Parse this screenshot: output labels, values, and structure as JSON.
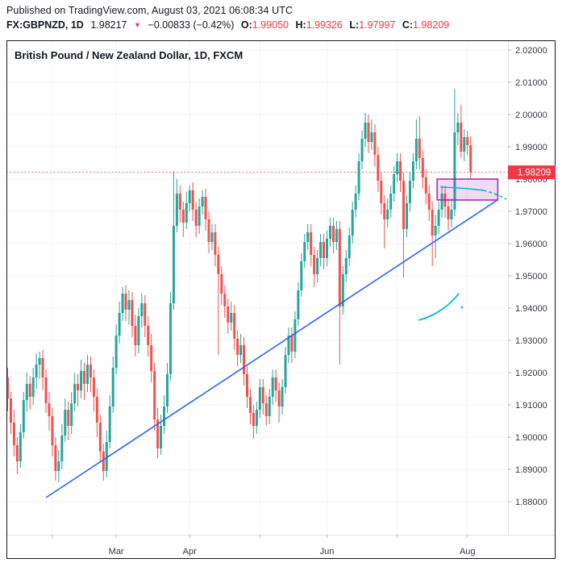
{
  "header": {
    "published": "Published on TradingView.com, August 03, 2021 06:08:34 UTC",
    "symbol": "FX:GBPNZD, 1D",
    "last_price": "1.98217",
    "direction_icon": "▼",
    "change": "−0.00833 (−0.42%)",
    "ohlc": {
      "o_label": "O:",
      "o_value": "1.99050",
      "h_label": "H:",
      "h_value": "1.99326",
      "l_label": "L:",
      "l_value": "1.97997",
      "c_label": "C:",
      "c_value": "1.98209"
    }
  },
  "chart": {
    "title": "British Pound / New Zealand Dollar, 1D, FXCM"
  },
  "colors": {
    "up": "#26a69a",
    "down": "#ef5350",
    "grid": "#f0f3fa",
    "frame": "#131722",
    "separator": "#e0e3eb",
    "axis_text": "#363a45",
    "accent_red": "#F23645",
    "trendline_blue": "#2962ff",
    "curve_cyan": "#00bcd4",
    "zone_purple": "#9c27b0",
    "label_text": "#ffffff"
  },
  "chart_data": {
    "type": "candlestick",
    "title": "British Pound / New Zealand Dollar, 1D, FXCM",
    "symbol": "GBPNZD",
    "timeframe": "1D",
    "exchange": "FXCM",
    "legend_position": "top-left",
    "grid": true,
    "y_axis": {
      "side": "right",
      "ticks": [
        "2.02000",
        "2.01000",
        "2.00000",
        "1.99000",
        "1.98000",
        "1.97000",
        "1.96000",
        "1.95000",
        "1.94000",
        "1.93000",
        "1.92000",
        "1.91000",
        "1.90000",
        "1.89000",
        "1.88000"
      ],
      "min": 1.8675,
      "max": 2.0235
    },
    "x_axis": {
      "labels": [
        {
          "text": "Mar",
          "day_index": 34
        },
        {
          "text": "Apr",
          "day_index": 57
        },
        {
          "text": "Jun",
          "day_index": 100
        },
        {
          "text": "Aug",
          "day_index": 144
        }
      ],
      "gridline_day_indices": [
        14,
        34,
        57,
        79,
        100,
        122,
        144
      ]
    },
    "price_line": {
      "value": 1.98209,
      "label": "1.98209"
    },
    "covered_axis_tick": "1.98000",
    "trendline": {
      "from": {
        "day": 12,
        "price": 1.88125
      },
      "to": {
        "day": 153.4,
        "price": 1.9735
      }
    },
    "rectangle_zone": {
      "day_start": 134.5,
      "day_end": 153.5,
      "price_top": 1.98,
      "price_bottom": 1.9735
    },
    "curves": [
      {
        "id": "upper-flat-curve",
        "solid": {
          "from": {
            "day": 135.5,
            "price": 1.9775
          },
          "to": {
            "day": 149.0,
            "price": 1.9765
          }
        },
        "dashed": {
          "to": {
            "day": 156.2,
            "price": 1.97375
          }
        }
      },
      {
        "id": "lower-arc-curve",
        "solid": {
          "from": {
            "day": 128.7,
            "price": 1.93625
          },
          "to": {
            "day": 141.3,
            "price": 1.9445
          }
        },
        "dot": {
          "day": 142.3,
          "price": 1.94025
        }
      }
    ],
    "candles": [
      [
        1.9185,
        1.9215,
        1.908,
        1.912
      ],
      [
        1.912,
        1.914,
        1.901,
        1.9045
      ],
      [
        1.9045,
        1.9085,
        1.894,
        1.8975
      ],
      [
        1.8975,
        1.9,
        1.8885,
        1.8925
      ],
      [
        1.8925,
        1.904,
        1.8905,
        1.9015
      ],
      [
        1.9015,
        1.914,
        1.8995,
        1.9115
      ],
      [
        1.9115,
        1.92,
        1.908,
        1.9165
      ],
      [
        1.9165,
        1.919,
        1.9085,
        1.9125
      ],
      [
        1.9125,
        1.9215,
        1.91,
        1.9185
      ],
      [
        1.9185,
        1.926,
        1.915,
        1.9225
      ],
      [
        1.9225,
        1.9265,
        1.918,
        1.9245
      ],
      [
        1.9245,
        1.927,
        1.9145,
        1.9185
      ],
      [
        1.9185,
        1.921,
        1.9075,
        1.9105
      ],
      [
        1.9105,
        1.914,
        1.902,
        1.9065
      ],
      [
        1.9065,
        1.909,
        1.894,
        1.8975
      ],
      [
        1.8975,
        1.9,
        1.8865,
        1.8895
      ],
      [
        1.8895,
        1.896,
        1.886,
        1.8925
      ],
      [
        1.8925,
        1.904,
        1.89,
        1.9005
      ],
      [
        1.9005,
        1.912,
        1.8985,
        1.9085
      ],
      [
        1.9085,
        1.911,
        1.899,
        1.9035
      ],
      [
        1.9035,
        1.914,
        1.901,
        1.9105
      ],
      [
        1.9105,
        1.92,
        1.908,
        1.9165
      ],
      [
        1.9165,
        1.9195,
        1.9095,
        1.9145
      ],
      [
        1.9145,
        1.924,
        1.912,
        1.9205
      ],
      [
        1.9205,
        1.923,
        1.9115,
        1.9165
      ],
      [
        1.9165,
        1.9255,
        1.914,
        1.9225
      ],
      [
        1.9225,
        1.925,
        1.914,
        1.9185
      ],
      [
        1.9185,
        1.921,
        1.908,
        1.9125
      ],
      [
        1.9125,
        1.915,
        1.9,
        1.9045
      ],
      [
        1.9045,
        1.907,
        1.892,
        1.8955
      ],
      [
        1.8955,
        1.898,
        1.8865,
        1.8895
      ],
      [
        1.8895,
        1.902,
        1.8875,
        1.8985
      ],
      [
        1.8985,
        1.913,
        1.8965,
        1.9095
      ],
      [
        1.9095,
        1.925,
        1.9075,
        1.9215
      ],
      [
        1.9215,
        1.935,
        1.9195,
        1.9315
      ],
      [
        1.9315,
        1.942,
        1.929,
        1.9385
      ],
      [
        1.9385,
        1.9465,
        1.936,
        1.9445
      ],
      [
        1.9445,
        1.947,
        1.936,
        1.9395
      ],
      [
        1.9395,
        1.9455,
        1.935,
        1.9425
      ],
      [
        1.9425,
        1.945,
        1.931,
        1.9345
      ],
      [
        1.9345,
        1.938,
        1.925,
        1.9285
      ],
      [
        1.9285,
        1.94,
        1.926,
        1.9375
      ],
      [
        1.9375,
        1.9445,
        1.934,
        1.9415
      ],
      [
        1.9415,
        1.944,
        1.931,
        1.9345
      ],
      [
        1.9345,
        1.9375,
        1.925,
        1.9285
      ],
      [
        1.9285,
        1.932,
        1.917,
        1.9205
      ],
      [
        1.9205,
        1.923,
        1.902,
        1.9055
      ],
      [
        1.9055,
        1.909,
        1.8935,
        1.8965
      ],
      [
        1.8965,
        1.907,
        1.8945,
        1.9035
      ],
      [
        1.9035,
        1.913,
        1.901,
        1.9095
      ],
      [
        1.9095,
        1.923,
        1.9075,
        1.9195
      ],
      [
        1.9195,
        1.945,
        1.9175,
        1.9415
      ],
      [
        1.9415,
        1.9825,
        1.9395,
        1.9655
      ],
      [
        1.9655,
        1.98,
        1.9635,
        1.9755
      ],
      [
        1.9755,
        1.978,
        1.9665,
        1.9705
      ],
      [
        1.9705,
        1.973,
        1.962,
        1.9665
      ],
      [
        1.9665,
        1.976,
        1.9645,
        1.9725
      ],
      [
        1.9725,
        1.978,
        1.97,
        1.9765
      ],
      [
        1.9765,
        1.979,
        1.967,
        1.9705
      ],
      [
        1.9705,
        1.973,
        1.962,
        1.9655
      ],
      [
        1.9655,
        1.974,
        1.963,
        1.9715
      ],
      [
        1.9715,
        1.9765,
        1.969,
        1.9745
      ],
      [
        1.9745,
        1.977,
        1.964,
        1.9675
      ],
      [
        1.9675,
        1.97,
        1.957,
        1.9605
      ],
      [
        1.9605,
        1.966,
        1.958,
        1.9635
      ],
      [
        1.9635,
        1.966,
        1.953,
        1.9565
      ],
      [
        1.9565,
        1.959,
        1.9255,
        1.9505
      ],
      [
        1.9505,
        1.953,
        1.941,
        1.9445
      ],
      [
        1.9445,
        1.947,
        1.937,
        1.9405
      ],
      [
        1.9405,
        1.943,
        1.932,
        1.9355
      ],
      [
        1.9355,
        1.942,
        1.933,
        1.9385
      ],
      [
        1.9385,
        1.941,
        1.927,
        1.9305
      ],
      [
        1.9305,
        1.933,
        1.922,
        1.9255
      ],
      [
        1.9255,
        1.932,
        1.923,
        1.9285
      ],
      [
        1.9285,
        1.931,
        1.916,
        1.9195
      ],
      [
        1.9195,
        1.922,
        1.909,
        1.9125
      ],
      [
        1.9125,
        1.915,
        1.904,
        1.9075
      ],
      [
        1.9075,
        1.91,
        1.8995,
        1.9035
      ],
      [
        1.9035,
        1.911,
        1.901,
        1.9085
      ],
      [
        1.9085,
        1.918,
        1.906,
        1.9155
      ],
      [
        1.9155,
        1.918,
        1.907,
        1.9105
      ],
      [
        1.9105,
        1.913,
        1.9035,
        1.9065
      ],
      [
        1.9065,
        1.915,
        1.904,
        1.9125
      ],
      [
        1.9125,
        1.921,
        1.91,
        1.9185
      ],
      [
        1.9185,
        1.921,
        1.911,
        1.9145
      ],
      [
        1.9145,
        1.917,
        1.9045,
        1.9095
      ],
      [
        1.9095,
        1.918,
        1.907,
        1.9155
      ],
      [
        1.9155,
        1.928,
        1.9135,
        1.9255
      ],
      [
        1.9255,
        1.934,
        1.923,
        1.9315
      ],
      [
        1.9315,
        1.934,
        1.923,
        1.9265
      ],
      [
        1.9265,
        1.939,
        1.9245,
        1.9365
      ],
      [
        1.9365,
        1.948,
        1.9345,
        1.9455
      ],
      [
        1.9455,
        1.957,
        1.9435,
        1.9545
      ],
      [
        1.9545,
        1.963,
        1.9525,
        1.9605
      ],
      [
        1.9605,
        1.966,
        1.958,
        1.9635
      ],
      [
        1.9635,
        1.966,
        1.953,
        1.9565
      ],
      [
        1.9565,
        1.959,
        1.9465,
        1.9505
      ],
      [
        1.9505,
        1.958,
        1.948,
        1.9555
      ],
      [
        1.9555,
        1.963,
        1.953,
        1.9605
      ],
      [
        1.9605,
        1.963,
        1.952,
        1.9555
      ],
      [
        1.9555,
        1.964,
        1.953,
        1.9615
      ],
      [
        1.9615,
        1.968,
        1.959,
        1.9655
      ],
      [
        1.9655,
        1.968,
        1.957,
        1.9605
      ],
      [
        1.9605,
        1.967,
        1.958,
        1.9645
      ],
      [
        1.9645,
        1.967,
        1.9225,
        1.9405
      ],
      [
        1.9405,
        1.953,
        1.938,
        1.9505
      ],
      [
        1.9505,
        1.958,
        1.948,
        1.9555
      ],
      [
        1.9555,
        1.965,
        1.953,
        1.9625
      ],
      [
        1.9625,
        1.973,
        1.96,
        1.9705
      ],
      [
        1.9705,
        1.978,
        1.968,
        1.9755
      ],
      [
        1.9755,
        1.988,
        1.9735,
        1.9855
      ],
      [
        1.9855,
        1.995,
        1.983,
        1.9925
      ],
      [
        1.9925,
        2.0005,
        1.99,
        1.9975
      ],
      [
        1.9975,
        2.0,
        1.988,
        1.9915
      ],
      [
        1.9915,
        1.9985,
        1.989,
        1.9945
      ],
      [
        1.9945,
        1.997,
        1.984,
        1.9875
      ],
      [
        1.9875,
        1.99,
        1.976,
        1.9795
      ],
      [
        1.9795,
        1.982,
        1.969,
        1.9725
      ],
      [
        1.9725,
        1.975,
        1.9585,
        1.9675
      ],
      [
        1.9675,
        1.974,
        1.965,
        1.9705
      ],
      [
        1.9705,
        1.978,
        1.968,
        1.9755
      ],
      [
        1.9755,
        1.984,
        1.973,
        1.9815
      ],
      [
        1.9815,
        1.988,
        1.979,
        1.9855
      ],
      [
        1.9855,
        1.988,
        1.976,
        1.9795
      ],
      [
        1.9795,
        1.982,
        1.9495,
        1.9645
      ],
      [
        1.9645,
        1.975,
        1.962,
        1.9725
      ],
      [
        1.9725,
        1.982,
        1.97,
        1.9795
      ],
      [
        1.9795,
        1.988,
        1.977,
        1.9855
      ],
      [
        1.9855,
        1.9985,
        1.983,
        1.9925
      ],
      [
        1.9925,
        1.9995,
        1.983,
        1.9865
      ],
      [
        1.9865,
        1.989,
        1.977,
        1.9805
      ],
      [
        1.9805,
        1.983,
        1.972,
        1.9755
      ],
      [
        1.9755,
        1.978,
        1.967,
        1.9705
      ],
      [
        1.9705,
        1.973,
        1.953,
        1.9625
      ],
      [
        1.9625,
        1.969,
        1.9555,
        1.9655
      ],
      [
        1.9655,
        1.973,
        1.963,
        1.9705
      ],
      [
        1.9705,
        1.978,
        1.968,
        1.9755
      ],
      [
        1.9755,
        1.978,
        1.968,
        1.9715
      ],
      [
        1.9715,
        1.974,
        1.964,
        1.9675
      ],
      [
        1.9675,
        1.974,
        1.965,
        1.9705
      ],
      [
        1.9705,
        2.008,
        1.9685,
        1.9945
      ],
      [
        1.9945,
        2.0005,
        1.9905,
        1.9975
      ],
      [
        1.9975,
        2.003,
        1.9865,
        1.9885
      ],
      [
        1.9885,
        1.9955,
        1.9855,
        1.993
      ],
      [
        1.993,
        1.995,
        1.9875,
        1.9905
      ],
      [
        1.9905,
        1.99326,
        1.97997,
        1.98209
      ]
    ]
  }
}
